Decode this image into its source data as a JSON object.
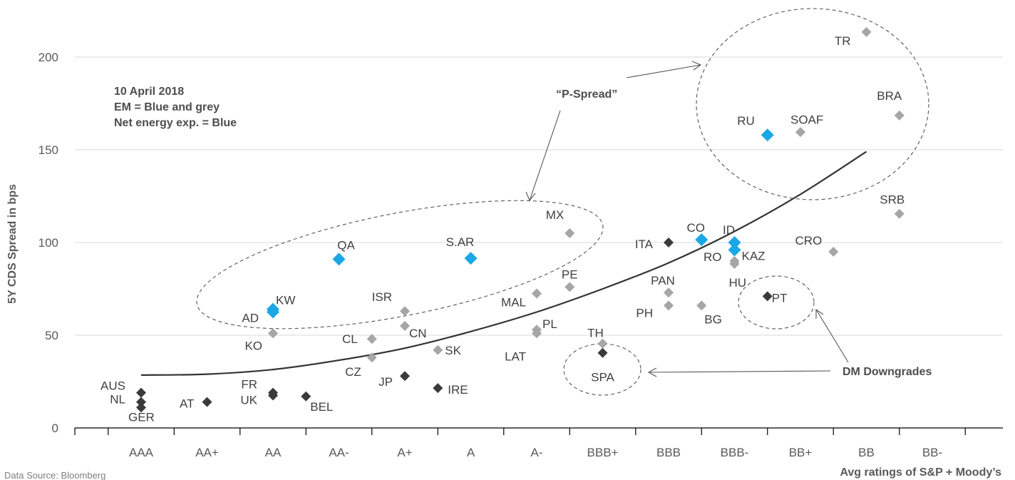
{
  "chart_data": {
    "type": "scatter",
    "title": "",
    "ylabel": "5Y CDS Spread in bps",
    "xlabel": "Avg ratings of S&P + Moody’s",
    "source": "Data Source: Bloomberg",
    "notes": [
      "10 April 2018",
      "EM = Blue and grey",
      "Net energy exp. = Blue"
    ],
    "categories": [
      "AAA",
      "AA+",
      "AA",
      "AA-",
      "A+",
      "A",
      "A-",
      "BBB+",
      "BBB",
      "BBB-",
      "BB+",
      "BB",
      "BB-"
    ],
    "ylim": [
      0,
      220
    ],
    "yticks": [
      0,
      50,
      100,
      150,
      200
    ],
    "grid": true,
    "colors": {
      "dm": "#3a3a3a",
      "em": "#a6a6a6",
      "energy": "#1aa7e6",
      "trend": "#333333",
      "ellipse": "#555555"
    },
    "points": [
      {
        "label": "AUS",
        "x": 1.0,
        "y": 19,
        "group": "dm"
      },
      {
        "label": "NL",
        "x": 1.0,
        "y": 14,
        "group": "dm"
      },
      {
        "label": "GER",
        "x": 1.0,
        "y": 11,
        "group": "dm"
      },
      {
        "label": "AT",
        "x": 2.0,
        "y": 14,
        "group": "dm"
      },
      {
        "label": "FR",
        "x": 3.0,
        "y": 19,
        "group": "dm"
      },
      {
        "label": "UK",
        "x": 3.0,
        "y": 17.5,
        "group": "dm"
      },
      {
        "label": "BEL",
        "x": 3.5,
        "y": 17,
        "group": "dm"
      },
      {
        "label": "JP",
        "x": 5.0,
        "y": 28,
        "group": "dm"
      },
      {
        "label": "IRE",
        "x": 5.5,
        "y": 21.5,
        "group": "dm"
      },
      {
        "label": "SPA",
        "x": 8.0,
        "y": 40.5,
        "group": "dm"
      },
      {
        "label": "ITA",
        "x": 9.0,
        "y": 100,
        "group": "dm"
      },
      {
        "label": "PT",
        "x": 10.5,
        "y": 71,
        "group": "dm"
      },
      {
        "label": "KO",
        "x": 3.0,
        "y": 51,
        "group": "em"
      },
      {
        "label": "CL",
        "x": 4.5,
        "y": 48,
        "group": "em"
      },
      {
        "label": "CZ",
        "x": 4.5,
        "y": 38,
        "group": "em"
      },
      {
        "label": "ISR",
        "x": 5.0,
        "y": 63,
        "group": "em"
      },
      {
        "label": "CN",
        "x": 5.0,
        "y": 55,
        "group": "em"
      },
      {
        "label": "SK",
        "x": 5.5,
        "y": 42,
        "group": "em"
      },
      {
        "label": "MAL",
        "x": 7.0,
        "y": 72.5,
        "group": "em"
      },
      {
        "label": "PL",
        "x": 7.0,
        "y": 53,
        "group": "em"
      },
      {
        "label": "LAT",
        "x": 7.0,
        "y": 51,
        "group": "em"
      },
      {
        "label": "MX",
        "x": 7.5,
        "y": 105,
        "group": "em"
      },
      {
        "label": "PE",
        "x": 7.5,
        "y": 76,
        "group": "em"
      },
      {
        "label": "TH",
        "x": 8.0,
        "y": 45.5,
        "group": "em"
      },
      {
        "label": "PAN",
        "x": 9.0,
        "y": 73,
        "group": "em"
      },
      {
        "label": "PH",
        "x": 9.0,
        "y": 66,
        "group": "em"
      },
      {
        "label": "BG",
        "x": 9.5,
        "y": 66,
        "group": "em"
      },
      {
        "label": "RO",
        "x": 10.0,
        "y": 90,
        "group": "em"
      },
      {
        "label": "HU",
        "x": 10.0,
        "y": 88.5,
        "group": "em"
      },
      {
        "label": "SOAF",
        "x": 11.0,
        "y": 159.5,
        "group": "em"
      },
      {
        "label": "CRO",
        "x": 11.5,
        "y": 95,
        "group": "em"
      },
      {
        "label": "TR",
        "x": 12.0,
        "y": 213.5,
        "group": "em"
      },
      {
        "label": "BRA",
        "x": 12.5,
        "y": 168.5,
        "group": "em"
      },
      {
        "label": "SRB",
        "x": 12.5,
        "y": 115.5,
        "group": "em"
      },
      {
        "label": "KW",
        "x": 3.0,
        "y": 64,
        "group": "energy"
      },
      {
        "label": "AD",
        "x": 3.0,
        "y": 62.5,
        "group": "energy"
      },
      {
        "label": "QA",
        "x": 4.0,
        "y": 91,
        "group": "energy"
      },
      {
        "label": "S.AR",
        "x": 6.0,
        "y": 91.5,
        "group": "energy"
      },
      {
        "label": "CO",
        "x": 9.5,
        "y": 101.5,
        "group": "energy"
      },
      {
        "label": "ID",
        "x": 10.0,
        "y": 100,
        "group": "energy"
      },
      {
        "label": "KAZ",
        "x": 10.0,
        "y": 96,
        "group": "energy"
      },
      {
        "label": "RU",
        "x": 10.5,
        "y": 158,
        "group": "energy"
      }
    ],
    "trend": [
      {
        "x": 1.0,
        "y": 28.5
      },
      {
        "x": 2.0,
        "y": 29
      },
      {
        "x": 3.0,
        "y": 31.5
      },
      {
        "x": 4.0,
        "y": 36.5
      },
      {
        "x": 5.0,
        "y": 43
      },
      {
        "x": 6.0,
        "y": 52
      },
      {
        "x": 7.0,
        "y": 62.5
      },
      {
        "x": 8.0,
        "y": 75
      },
      {
        "x": 9.0,
        "y": 89
      },
      {
        "x": 10.0,
        "y": 106
      },
      {
        "x": 11.0,
        "y": 126
      },
      {
        "x": 12.0,
        "y": 149
      }
    ],
    "annotations": [
      "“P-Spread”",
      "DM Downgrades"
    ]
  }
}
